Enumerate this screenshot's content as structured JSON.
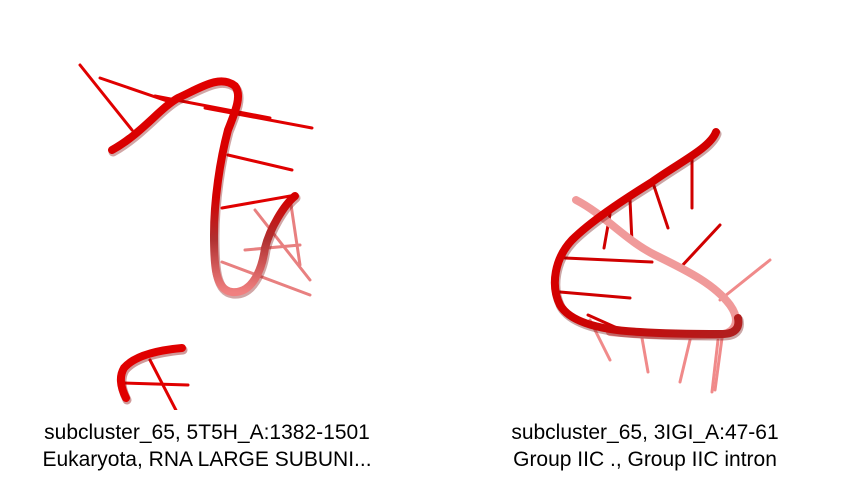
{
  "panels": [
    {
      "title": "subcluster_65, 5T5H_A:1382-1501",
      "subtitle": "Eukaryota, RNA LARGE SUBUNI..."
    },
    {
      "title": "subcluster_65, 3IGI_A:47-61",
      "subtitle": "Group IIC ., Group IIC intron"
    }
  ],
  "colors": {
    "backbone": "#e00000",
    "backbone_shadow": "#7a0000",
    "backbone_far": "#f08080",
    "background": "#ffffff",
    "text": "#000000"
  }
}
